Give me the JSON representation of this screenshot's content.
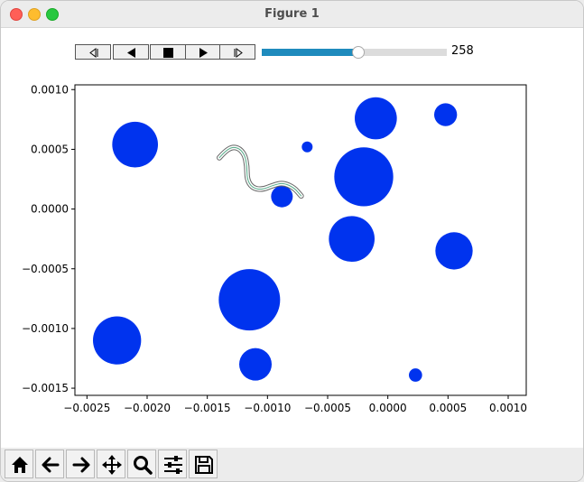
{
  "window": {
    "title": "Figure 1"
  },
  "animation_controls": {
    "buttons": [
      {
        "name": "first-frame-button",
        "icon": "skip-back-icon"
      },
      {
        "name": "step-back-button",
        "icon": "play-reverse-icon"
      },
      {
        "name": "stop-button",
        "icon": "stop-icon"
      },
      {
        "name": "play-button",
        "icon": "play-icon"
      },
      {
        "name": "last-frame-button",
        "icon": "skip-forward-icon"
      }
    ],
    "frame_slider": {
      "fraction": 0.52,
      "value": "258"
    }
  },
  "chart_data": {
    "type": "scatter",
    "xlim": [
      -0.0026,
      0.00115
    ],
    "ylim": [
      -0.00156,
      0.00104
    ],
    "xticks": [
      -0.0025,
      -0.002,
      -0.0015,
      -0.001,
      -0.0005,
      0.0,
      0.0005,
      0.001
    ],
    "xtick_labels": [
      "−0.0025",
      "−0.0020",
      "−0.0015",
      "−0.0010",
      "−0.0005",
      "0.0000",
      "0.0005",
      "0.0010"
    ],
    "yticks": [
      0.001,
      0.0005,
      0.0,
      -0.0005,
      -0.001,
      -0.0015
    ],
    "ytick_labels": [
      "0.0010",
      "0.0005",
      "0.0000",
      "−0.0005",
      "−0.0010",
      "−0.0015"
    ],
    "point_color": "#0033ee",
    "points": [
      {
        "x": -0.0021,
        "y": 0.00054,
        "r": 0.00019
      },
      {
        "x": -0.0001,
        "y": 0.00076,
        "r": 0.000175
      },
      {
        "x": 0.00048,
        "y": 0.00079,
        "r": 9.5e-05
      },
      {
        "x": -0.00067,
        "y": 0.00052,
        "r": 4.5e-05
      },
      {
        "x": -0.0002,
        "y": 0.00027,
        "r": 0.000245
      },
      {
        "x": -0.00088,
        "y": 0.000105,
        "r": 9e-05
      },
      {
        "x": -0.0003,
        "y": -0.00025,
        "r": 0.00019
      },
      {
        "x": 0.00055,
        "y": -0.00035,
        "r": 0.000155
      },
      {
        "x": -0.00115,
        "y": -0.00076,
        "r": 0.000255
      },
      {
        "x": -0.00225,
        "y": -0.0011,
        "r": 0.0002
      },
      {
        "x": -0.0011,
        "y": -0.0013,
        "r": 0.000135
      },
      {
        "x": 0.00023,
        "y": -0.00139,
        "r": 5.5e-05
      }
    ],
    "worm": {
      "outline_color": "#666666",
      "inner_color": "#55aa88",
      "path": [
        [
          -0.0014,
          0.00043
        ],
        [
          -0.00133,
          0.00051
        ],
        [
          -0.00125,
          0.00052
        ],
        [
          -0.00119,
          0.00046
        ],
        [
          -0.00117,
          0.00036
        ],
        [
          -0.00117,
          0.00025
        ],
        [
          -0.00113,
          0.00018
        ],
        [
          -0.00105,
          0.00016
        ],
        [
          -0.00095,
          0.0002
        ],
        [
          -0.00087,
          0.00022
        ],
        [
          -0.00078,
          0.00018
        ],
        [
          -0.00072,
          0.00011
        ]
      ]
    }
  },
  "toolbar": {
    "buttons": [
      {
        "name": "home-button",
        "icon": "home-icon"
      },
      {
        "name": "back-button",
        "icon": "arrow-left-icon"
      },
      {
        "name": "forward-button",
        "icon": "arrow-right-icon"
      },
      {
        "name": "pan-button",
        "icon": "move-icon"
      },
      {
        "name": "zoom-button",
        "icon": "magnifier-icon"
      },
      {
        "name": "configure-subplots-button",
        "icon": "sliders-icon"
      },
      {
        "name": "save-button",
        "icon": "save-icon"
      }
    ]
  }
}
